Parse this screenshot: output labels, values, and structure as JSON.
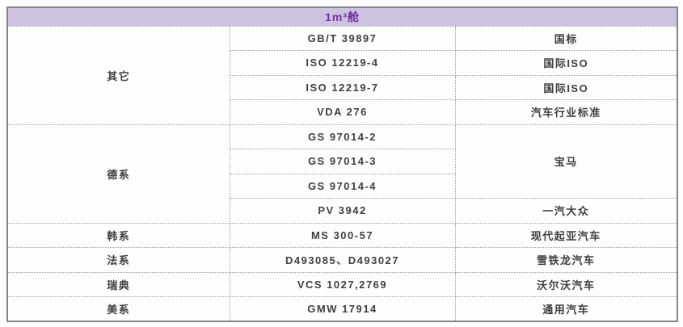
{
  "table": {
    "title": "1m³舱",
    "colors": {
      "header_bg": "#cdc2df",
      "header_text": "#7030a0",
      "body_text": "#3f3f3f",
      "outer_border": "#858585",
      "inner_border": "#9e9e9e"
    },
    "groups": [
      {
        "category": "其它",
        "rows": [
          {
            "standard": "GB/T 39897",
            "org": "国标"
          },
          {
            "standard": "ISO 12219-4",
            "org": "国际ISO"
          },
          {
            "standard": "ISO 12219-7",
            "org": "国际ISO"
          },
          {
            "standard": "VDA 276",
            "org": "汽车行业标准"
          }
        ]
      },
      {
        "category": "德系",
        "rows": [
          {
            "standard": "GS 97014-2",
            "org": "宝马"
          },
          {
            "standard": "GS 97014-3"
          },
          {
            "standard": "GS 97014-4"
          },
          {
            "standard": "PV 3942",
            "org": "一汽大众"
          }
        ]
      },
      {
        "category": "韩系",
        "rows": [
          {
            "standard": "MS 300-57",
            "org": "现代起亚汽车"
          }
        ]
      },
      {
        "category": "法系",
        "rows": [
          {
            "standard": "D493085、D493027",
            "org": "雪铁龙汽车"
          }
        ]
      },
      {
        "category": "瑞典",
        "rows": [
          {
            "standard": "VCS 1027,2769",
            "org": "沃尔沃汽车"
          }
        ]
      },
      {
        "category": "美系",
        "rows": [
          {
            "standard": "GMW 17914",
            "org": "通用汽车"
          }
        ]
      }
    ]
  }
}
